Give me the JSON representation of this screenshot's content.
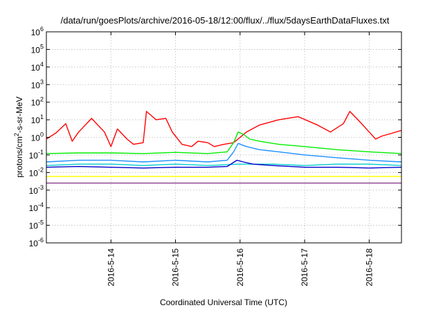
{
  "chart_data": {
    "type": "line",
    "title": "/data/run/goesPlots/archive/2016-05-18/12:00/flux/../flux/5daysEarthDataFluxes.txt",
    "xlabel": "Coordinated Universal Time (UTC)",
    "ylabel": {
      "base": "protons/cm",
      "sup": "2",
      "rest": "-s-sr-MeV"
    },
    "yscale": "log",
    "ylim": [
      1e-06,
      1000000.0
    ],
    "xlim": [
      0,
      5.5
    ],
    "grid": true,
    "x_ticks": [
      {
        "x": 1,
        "label": "2016-5-14"
      },
      {
        "x": 2,
        "label": "2016-5-15"
      },
      {
        "x": 3,
        "label": "2016-5-16"
      },
      {
        "x": 4,
        "label": "2016-5-17"
      },
      {
        "x": 5,
        "label": "2016-5-18"
      }
    ],
    "y_ticks": [
      {
        "exp": -6,
        "label": "10",
        "sup": "-6"
      },
      {
        "exp": -5,
        "label": "10",
        "sup": "-5"
      },
      {
        "exp": -4,
        "label": "10",
        "sup": "-4"
      },
      {
        "exp": -3,
        "label": "10",
        "sup": "-3"
      },
      {
        "exp": -2,
        "label": "10",
        "sup": "-2"
      },
      {
        "exp": -1,
        "label": "10",
        "sup": "-1"
      },
      {
        "exp": 0,
        "label": "10",
        "sup": "0"
      },
      {
        "exp": 1,
        "label": "10",
        "sup": "1"
      },
      {
        "exp": 2,
        "label": "10",
        "sup": "2"
      },
      {
        "exp": 3,
        "label": "10",
        "sup": "3"
      },
      {
        "exp": 4,
        "label": "10",
        "sup": "4"
      },
      {
        "exp": 5,
        "label": "10",
        "sup": "5"
      },
      {
        "exp": 6,
        "label": "10",
        "sup": "6"
      }
    ],
    "series": [
      {
        "color": "#ff0000",
        "x": [
          0.0,
          0.15,
          0.3,
          0.4,
          0.5,
          0.7,
          0.9,
          1.0,
          1.1,
          1.25,
          1.35,
          1.5,
          1.55,
          1.7,
          1.85,
          1.95,
          2.1,
          2.25,
          2.35,
          2.5,
          2.6,
          2.75,
          2.9,
          3.1,
          3.3,
          3.6,
          3.9,
          4.2,
          4.4,
          4.6,
          4.7,
          4.85,
          5.0,
          5.1,
          5.2,
          5.3,
          5.5
        ],
        "y": [
          0.8,
          1.8,
          6,
          0.6,
          2,
          12,
          2,
          0.3,
          3,
          0.8,
          0.4,
          0.5,
          30,
          10,
          12,
          2,
          0.4,
          0.3,
          0.6,
          0.5,
          0.3,
          0.4,
          0.5,
          2,
          5,
          10,
          15,
          5,
          2,
          6,
          30,
          8,
          2,
          0.8,
          1.2,
          1.5,
          2.5
        ]
      },
      {
        "color": "#00ee00",
        "x": [
          0.0,
          0.5,
          1.0,
          1.5,
          2.0,
          2.5,
          2.8,
          2.9,
          2.97,
          3.05,
          3.15,
          3.3,
          3.6,
          4.0,
          4.5,
          5.0,
          5.5
        ],
        "y": [
          0.12,
          0.13,
          0.13,
          0.12,
          0.14,
          0.12,
          0.15,
          0.5,
          2,
          1.5,
          0.8,
          0.6,
          0.4,
          0.3,
          0.2,
          0.15,
          0.12
        ]
      },
      {
        "color": "#1e90ff",
        "x": [
          0.0,
          0.5,
          1.0,
          1.5,
          2.0,
          2.5,
          2.8,
          2.9,
          2.97,
          3.1,
          3.3,
          3.6,
          4.0,
          4.5,
          5.0,
          5.5
        ],
        "y": [
          0.04,
          0.05,
          0.05,
          0.04,
          0.05,
          0.04,
          0.05,
          0.15,
          0.45,
          0.3,
          0.2,
          0.15,
          0.1,
          0.07,
          0.05,
          0.04
        ]
      },
      {
        "color": "#00cccc",
        "x": [
          0.0,
          0.5,
          1.0,
          1.5,
          2.0,
          2.5,
          3.0,
          3.5,
          4.0,
          4.5,
          5.0,
          5.5
        ],
        "y": [
          0.025,
          0.03,
          0.03,
          0.025,
          0.03,
          0.025,
          0.03,
          0.03,
          0.025,
          0.03,
          0.03,
          0.025
        ]
      },
      {
        "color": "#0000cc",
        "x": [
          0.0,
          0.5,
          1.0,
          1.5,
          2.0,
          2.5,
          2.8,
          2.95,
          3.05,
          3.2,
          3.5,
          4.0,
          4.5,
          5.0,
          5.5
        ],
        "y": [
          0.02,
          0.022,
          0.02,
          0.018,
          0.02,
          0.02,
          0.022,
          0.05,
          0.04,
          0.03,
          0.025,
          0.02,
          0.02,
          0.018,
          0.02
        ]
      },
      {
        "color": "#ffff00",
        "x": [
          0.0,
          1.0,
          2.0,
          3.0,
          4.0,
          5.0,
          5.5
        ],
        "y": [
          0.006,
          0.006,
          0.006,
          0.006,
          0.006,
          0.006,
          0.006
        ]
      },
      {
        "color": "#8b3a8b",
        "x": [
          0.0,
          1.0,
          2.0,
          3.0,
          4.0,
          5.0,
          5.5
        ],
        "y": [
          0.0025,
          0.0025,
          0.0025,
          0.0025,
          0.0025,
          0.0025,
          0.0025
        ]
      }
    ]
  }
}
